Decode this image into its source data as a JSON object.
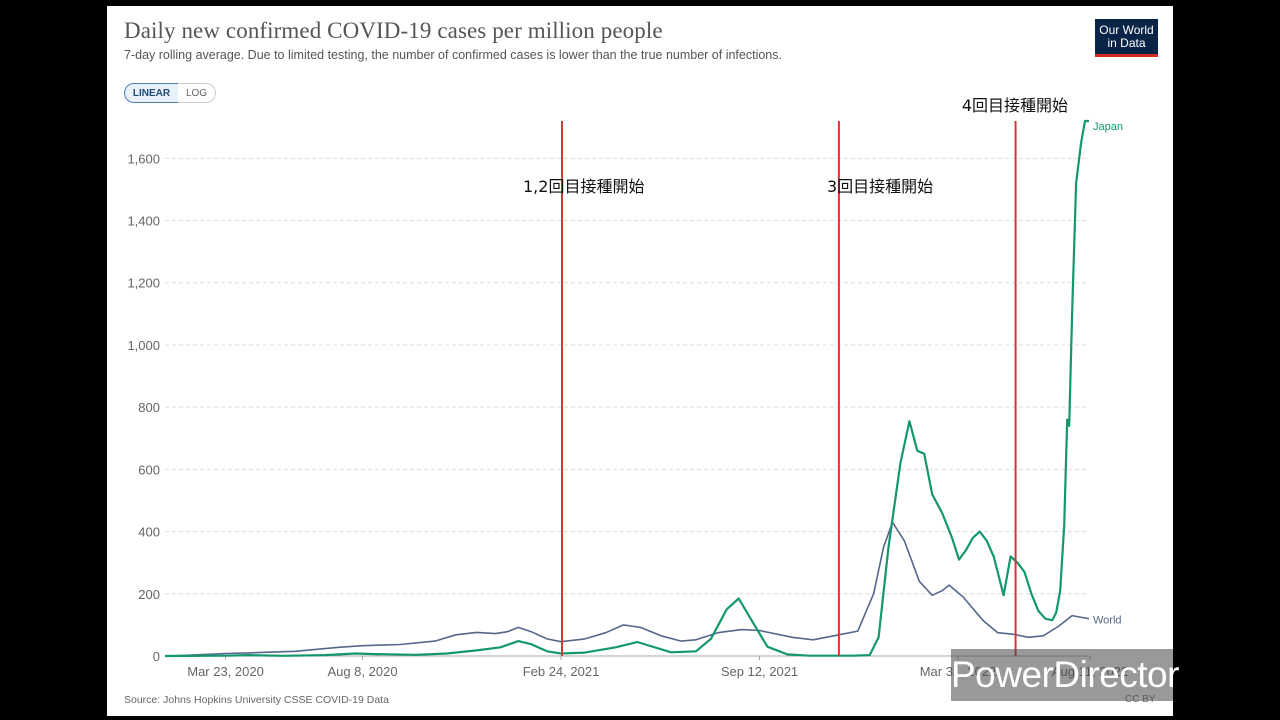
{
  "header": {
    "title": "Daily new confirmed COVID-19 cases per million people",
    "subtitle": "7-day rolling average. Due to limited testing, the number of confirmed cases is lower than the true number of infections."
  },
  "logo": {
    "line1": "Our World",
    "line2": "in Data"
  },
  "toggles": {
    "linear": "LINEAR",
    "log": "LOG"
  },
  "footer": {
    "source": "Source: Johns Hopkins University CSSE COVID-19 Data",
    "license": "CC BY"
  },
  "watermark": "PowerDirector",
  "colors": {
    "japan": "#13976f",
    "world": "#55678c",
    "annotation_line": "#d93535",
    "grid": "#dddddd"
  },
  "chart_data": {
    "type": "line",
    "title": "Daily new confirmed COVID-19 cases per million people",
    "ylim": [
      0,
      1720
    ],
    "xlim": [
      "2020-01-22",
      "2022-08-10"
    ],
    "y_ticks": [
      0,
      200,
      400,
      600,
      800,
      1000,
      1200,
      1400,
      1600
    ],
    "y_tick_labels": [
      "0",
      "200",
      "400",
      "600",
      "800",
      "1,000",
      "1,200",
      "1,400",
      "1,600"
    ],
    "x_tick_labels": [
      {
        "label": "Mar 23, 2020",
        "date": "2020-03-23"
      },
      {
        "label": "Aug 8, 2020",
        "date": "2020-08-08"
      },
      {
        "label": "Feb 24, 2021",
        "date": "2021-02-24"
      },
      {
        "label": "Sep 12, 2021",
        "date": "2021-09-12"
      },
      {
        "label": "Mar 31, 2022",
        "date": "2022-03-31"
      },
      {
        "label": "Aug 11, 2022",
        "date": "2022-08-11"
      }
    ],
    "grid": true,
    "series": [
      {
        "name": "Japan",
        "points": [
          [
            "2020-01-22",
            0
          ],
          [
            "2020-03-23",
            1
          ],
          [
            "2020-04-15",
            3
          ],
          [
            "2020-05-20",
            0.5
          ],
          [
            "2020-07-01",
            3
          ],
          [
            "2020-08-01",
            8
          ],
          [
            "2020-08-20",
            6
          ],
          [
            "2020-10-01",
            4
          ],
          [
            "2020-11-01",
            8
          ],
          [
            "2020-12-01",
            18
          ],
          [
            "2020-12-25",
            28
          ],
          [
            "2021-01-12",
            48
          ],
          [
            "2021-01-25",
            38
          ],
          [
            "2021-02-10",
            15
          ],
          [
            "2021-02-24",
            8
          ],
          [
            "2021-03-20",
            11
          ],
          [
            "2021-04-20",
            28
          ],
          [
            "2021-05-12",
            45
          ],
          [
            "2021-05-25",
            32
          ],
          [
            "2021-06-15",
            12
          ],
          [
            "2021-07-10",
            15
          ],
          [
            "2021-07-25",
            55
          ],
          [
            "2021-08-10",
            150
          ],
          [
            "2021-08-22",
            185
          ],
          [
            "2021-09-05",
            110
          ],
          [
            "2021-09-20",
            30
          ],
          [
            "2021-10-10",
            5
          ],
          [
            "2021-11-01",
            1
          ],
          [
            "2021-12-15",
            1
          ],
          [
            "2022-01-01",
            3
          ],
          [
            "2022-01-10",
            60
          ],
          [
            "2022-01-20",
            350
          ],
          [
            "2022-02-01",
            620
          ],
          [
            "2022-02-10",
            755
          ],
          [
            "2022-02-18",
            660
          ],
          [
            "2022-02-25",
            650
          ],
          [
            "2022-03-05",
            520
          ],
          [
            "2022-03-15",
            460
          ],
          [
            "2022-03-25",
            380
          ],
          [
            "2022-04-01",
            310
          ],
          [
            "2022-04-08",
            340
          ],
          [
            "2022-04-15",
            380
          ],
          [
            "2022-04-22",
            400
          ],
          [
            "2022-04-29",
            370
          ],
          [
            "2022-05-06",
            320
          ],
          [
            "2022-05-10",
            270
          ],
          [
            "2022-05-16",
            195
          ],
          [
            "2022-05-23",
            320
          ],
          [
            "2022-05-30",
            300
          ],
          [
            "2022-06-06",
            270
          ],
          [
            "2022-06-13",
            200
          ],
          [
            "2022-06-20",
            145
          ],
          [
            "2022-06-27",
            120
          ],
          [
            "2022-07-04",
            115
          ],
          [
            "2022-07-08",
            140
          ],
          [
            "2022-07-12",
            210
          ],
          [
            "2022-07-16",
            420
          ],
          [
            "2022-07-19",
            760
          ],
          [
            "2022-07-21",
            740
          ],
          [
            "2022-07-24",
            1100
          ],
          [
            "2022-07-28",
            1520
          ],
          [
            "2022-08-02",
            1650
          ],
          [
            "2022-08-06",
            1720
          ],
          [
            "2022-08-10",
            1720
          ]
        ]
      },
      {
        "name": "World",
        "points": [
          [
            "2020-01-22",
            0
          ],
          [
            "2020-02-10",
            2
          ],
          [
            "2020-03-23",
            8
          ],
          [
            "2020-04-15",
            10
          ],
          [
            "2020-06-01",
            15
          ],
          [
            "2020-07-15",
            28
          ],
          [
            "2020-08-08",
            33
          ],
          [
            "2020-09-15",
            37
          ],
          [
            "2020-10-20",
            48
          ],
          [
            "2020-11-10",
            68
          ],
          [
            "2020-12-01",
            76
          ],
          [
            "2020-12-20",
            72
          ],
          [
            "2021-01-01",
            78
          ],
          [
            "2021-01-12",
            92
          ],
          [
            "2021-01-25",
            78
          ],
          [
            "2021-02-10",
            55
          ],
          [
            "2021-02-24",
            46
          ],
          [
            "2021-03-20",
            55
          ],
          [
            "2021-04-10",
            75
          ],
          [
            "2021-04-28",
            100
          ],
          [
            "2021-05-15",
            92
          ],
          [
            "2021-06-05",
            65
          ],
          [
            "2021-06-25",
            48
          ],
          [
            "2021-07-10",
            52
          ],
          [
            "2021-08-01",
            75
          ],
          [
            "2021-08-25",
            85
          ],
          [
            "2021-09-12",
            82
          ],
          [
            "2021-10-15",
            60
          ],
          [
            "2021-11-05",
            52
          ],
          [
            "2021-12-01",
            68
          ],
          [
            "2021-12-20",
            80
          ],
          [
            "2022-01-05",
            200
          ],
          [
            "2022-01-15",
            350
          ],
          [
            "2022-01-24",
            430
          ],
          [
            "2022-02-05",
            370
          ],
          [
            "2022-02-20",
            240
          ],
          [
            "2022-03-05",
            195
          ],
          [
            "2022-03-15",
            210
          ],
          [
            "2022-03-22",
            228
          ],
          [
            "2022-04-05",
            190
          ],
          [
            "2022-04-25",
            115
          ],
          [
            "2022-05-10",
            75
          ],
          [
            "2022-05-25",
            70
          ],
          [
            "2022-06-10",
            60
          ],
          [
            "2022-06-25",
            65
          ],
          [
            "2022-07-10",
            95
          ],
          [
            "2022-07-24",
            130
          ],
          [
            "2022-08-01",
            125
          ],
          [
            "2022-08-10",
            120
          ]
        ]
      }
    ],
    "annotations": [
      {
        "label": "1,2回目接種開始",
        "date": "2021-02-25"
      },
      {
        "label": "3回目接種開始",
        "date": "2021-12-01"
      },
      {
        "label": "4回目接種開始",
        "date": "2022-05-28"
      }
    ]
  }
}
